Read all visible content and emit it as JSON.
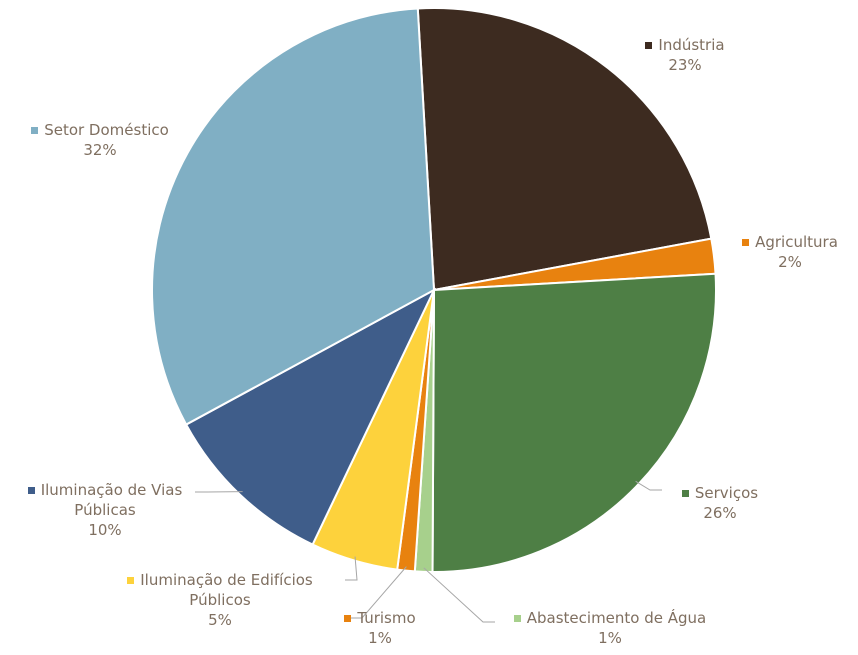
{
  "chart_data": {
    "type": "pie",
    "categories": [
      "Indústria",
      "Agricultura",
      "Serviços",
      "Abastecimento de Água",
      "Turismo",
      "Iluminação de Edifícios Públicos",
      "Iluminação de Vias Públicas",
      "Setor Doméstico"
    ],
    "values": [
      23,
      2,
      26,
      1,
      1,
      5,
      10,
      32
    ],
    "value_labels": [
      "23%",
      "2%",
      "26%",
      "1%",
      "1%",
      "5%",
      "10%",
      "32%"
    ],
    "colors": [
      "#3d2b20",
      "#e8820f",
      "#4e7f45",
      "#a7d08c",
      "#e8820f",
      "#fdd23c",
      "#3f5d8a",
      "#80afc4"
    ]
  }
}
